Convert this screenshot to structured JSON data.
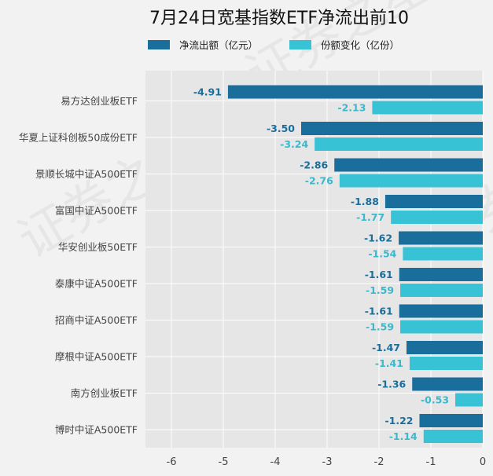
{
  "chart_data": {
    "type": "bar",
    "orientation": "horizontal",
    "title": "7月24日宽基指数ETF净流出前10",
    "categories": [
      "易方达创业板ETF",
      "华夏上证科创板50成份ETF",
      "景顺长城中证A500ETF",
      "富国中证A500ETF",
      "华安创业板50ETF",
      "泰康中证A500ETF",
      "招商中证A500ETF",
      "摩根中证A500ETF",
      "南方创业板ETF",
      "博时中证A500ETF"
    ],
    "series": [
      {
        "name": "净流出额（亿元）",
        "color": "#1a6e9c",
        "label_color": "#1a6e9c",
        "values": [
          -4.91,
          -3.5,
          -2.86,
          -1.88,
          -1.62,
          -1.61,
          -1.61,
          -1.47,
          -1.36,
          -1.22
        ],
        "labels": [
          "-4.91",
          "-3.50",
          "-2.86",
          "-1.88",
          "-1.62",
          "-1.61",
          "-1.61",
          "-1.47",
          "-1.36",
          "-1.22"
        ]
      },
      {
        "name": "份额变化（亿份）",
        "color": "#38c2d6",
        "label_color": "#3ab8cc",
        "values": [
          -2.13,
          -3.24,
          -2.76,
          -1.77,
          -1.54,
          -1.59,
          -1.59,
          -1.41,
          -0.53,
          -1.14
        ],
        "labels": [
          "-2.13",
          "-3.24",
          "-2.76",
          "-1.77",
          "-1.54",
          "-1.59",
          "-1.59",
          "-1.41",
          "-0.53",
          "-1.14"
        ]
      }
    ],
    "xlim": [
      -6.5,
      0
    ],
    "xticks": [
      -6,
      -5,
      -4,
      -3,
      -2,
      -1,
      0
    ],
    "xtick_labels": [
      "-6",
      "-5",
      "-4",
      "-3",
      "-2",
      "-1",
      "0"
    ],
    "grid": true,
    "legend_position": "top",
    "watermark": "证券之星"
  }
}
